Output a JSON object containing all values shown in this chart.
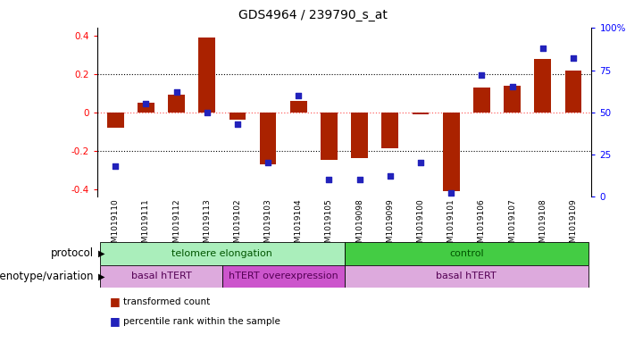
{
  "title": "GDS4964 / 239790_s_at",
  "samples": [
    "GSM1019110",
    "GSM1019111",
    "GSM1019112",
    "GSM1019113",
    "GSM1019102",
    "GSM1019103",
    "GSM1019104",
    "GSM1019105",
    "GSM1019098",
    "GSM1019099",
    "GSM1019100",
    "GSM1019101",
    "GSM1019106",
    "GSM1019107",
    "GSM1019108",
    "GSM1019109"
  ],
  "bar_values": [
    -0.08,
    0.05,
    0.09,
    0.39,
    -0.04,
    -0.27,
    0.06,
    -0.25,
    -0.24,
    -0.19,
    -0.01,
    -0.41,
    0.13,
    0.14,
    0.28,
    0.22
  ],
  "dot_values": [
    18,
    55,
    62,
    50,
    43,
    20,
    60,
    10,
    10,
    12,
    20,
    2,
    72,
    65,
    88,
    82
  ],
  "ylim": [
    -0.44,
    0.44
  ],
  "yticks_left": [
    -0.4,
    -0.2,
    0.0,
    0.2,
    0.4
  ],
  "ytick_labels_left": [
    "-0.4",
    "-0.2",
    "0",
    "0.2",
    "0.4"
  ],
  "right_tick_pcts": [
    0,
    25,
    50,
    75,
    100
  ],
  "right_tick_labels": [
    "0",
    "25",
    "50",
    "75",
    "100%"
  ],
  "bar_color": "#aa2200",
  "dot_color": "#2222bb",
  "dot_marker": "s",
  "dot_size": 20,
  "protocol_groups": [
    {
      "label": "telomere elongation",
      "start": 0,
      "end": 8,
      "color": "#aaeebb"
    },
    {
      "label": "control",
      "start": 8,
      "end": 16,
      "color": "#44cc44"
    }
  ],
  "genotype_groups": [
    {
      "label": "basal hTERT",
      "start": 0,
      "end": 4,
      "color": "#ddaadd"
    },
    {
      "label": "hTERT overexpression",
      "start": 4,
      "end": 8,
      "color": "#cc55cc"
    },
    {
      "label": "basal hTERT",
      "start": 8,
      "end": 16,
      "color": "#ddaadd"
    }
  ],
  "legend_bar_label": "transformed count",
  "legend_dot_label": "percentile rank within the sample",
  "sample_bg_color": "#cccccc",
  "background_color": "#ffffff",
  "zero_line_color": "#ff6666",
  "grid_line_color": "#000000",
  "title_fontsize": 10,
  "tick_fontsize": 7.5,
  "label_fontsize": 8.5,
  "sample_fontsize": 6.5,
  "group_fontsize": 8,
  "legend_fontsize": 7.5
}
